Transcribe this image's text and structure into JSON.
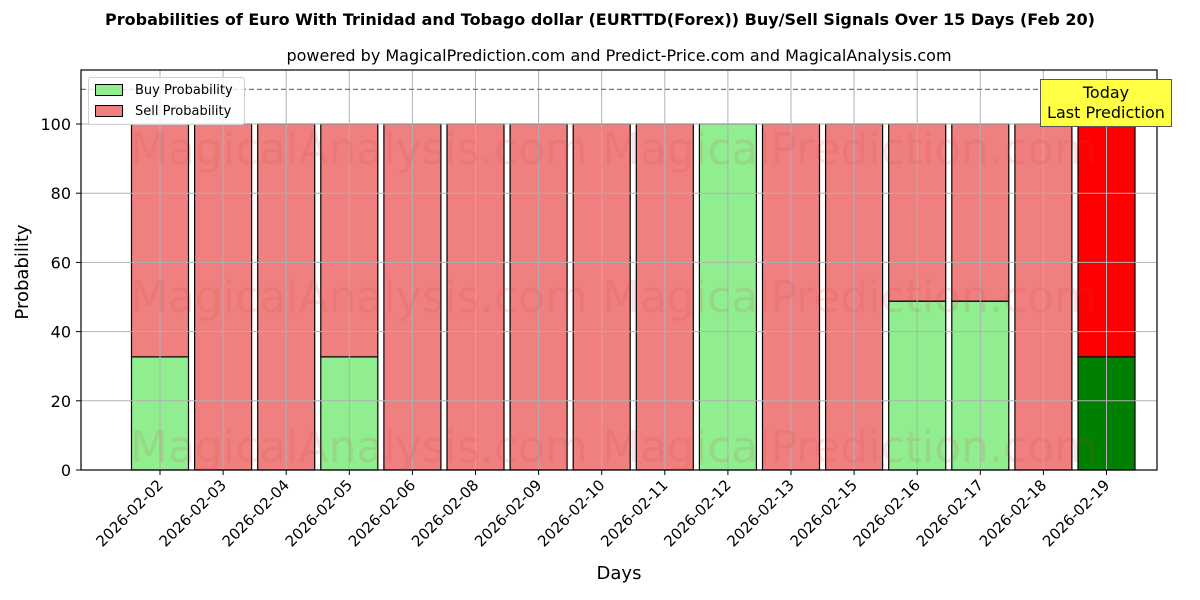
{
  "title": "Probabilities of Euro With Trinidad and Tobago dollar (EURTTD(Forex)) Buy/Sell Signals Over 15 Days (Feb 20)",
  "subtitle": "powered by MagicalPrediction.com and Predict-Price.com and MagicalAnalysis.com",
  "legend": {
    "buy_label": "Buy Probability",
    "sell_label": "Sell Probability"
  },
  "annotation": {
    "line1": "Today",
    "line2": "Last Prediction"
  },
  "watermarks": [
    "MagicalAnalysis.com",
    "MagicalPrediction.com"
  ],
  "colors": {
    "buy": "#90ee90",
    "sell": "#f08080",
    "today_buy": "#008000",
    "today_sell": "#ff0000",
    "annotation_bg": "#ffff44",
    "grid": "#b0b0b0"
  },
  "chart_data": {
    "type": "bar",
    "stacked": true,
    "title": "Probabilities of Euro With Trinidad and Tobago dollar (EURTTD(Forex)) Buy/Sell Signals Over 15 Days (Feb 20)",
    "subtitle": "powered by MagicalPrediction.com and Predict-Price.com and MagicalAnalysis.com",
    "xlabel": "Days",
    "ylabel": "Probability",
    "ylim": [
      0,
      115
    ],
    "yticks": [
      0,
      20,
      40,
      60,
      80,
      100
    ],
    "grid": true,
    "legend_position": "upper left",
    "reference_line": {
      "y": 110,
      "style": "dashed"
    },
    "categories": [
      "2026-02-02",
      "2026-02-03",
      "2026-02-04",
      "2026-02-05",
      "2026-02-06",
      "2026-02-08",
      "2026-02-09",
      "2026-02-10",
      "2026-02-11",
      "2026-02-12",
      "2026-02-13",
      "2026-02-15",
      "2026-02-16",
      "2026-02-17",
      "2026-02-18",
      "2026-02-19"
    ],
    "series": [
      {
        "name": "Buy Probability",
        "values": [
          32.7,
          0,
          0,
          32.7,
          0,
          0,
          0,
          0,
          0,
          100,
          0,
          0,
          48.8,
          48.8,
          0,
          32.7
        ]
      },
      {
        "name": "Sell Probability",
        "values": [
          67.3,
          100,
          100,
          67.3,
          100,
          100,
          100,
          100,
          100,
          0,
          100,
          100,
          51.2,
          51.2,
          100,
          67.3
        ]
      }
    ],
    "highlight": {
      "category": "2026-02-19",
      "label": "Today Last Prediction"
    }
  }
}
